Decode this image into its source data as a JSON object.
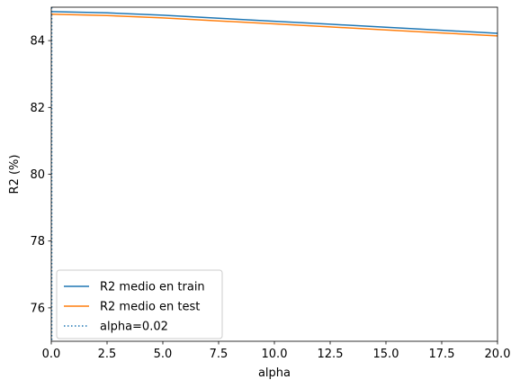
{
  "chart_data": {
    "type": "line",
    "title": "",
    "xlabel": "alpha",
    "ylabel": "R2 (%)",
    "xlim": [
      0,
      20
    ],
    "ylim": [
      75,
      85
    ],
    "xticks": [
      0,
      2.5,
      5,
      7.5,
      10,
      12.5,
      15,
      17.5,
      20
    ],
    "xtick_labels": [
      "0.0",
      "2.5",
      "5.0",
      "7.5",
      "10.0",
      "12.5",
      "15.0",
      "17.5",
      "20.0"
    ],
    "yticks": [
      76,
      78,
      80,
      82,
      84
    ],
    "ytick_labels": [
      "76",
      "78",
      "80",
      "82",
      "84"
    ],
    "grid": false,
    "legend_position": "lower-left",
    "series": [
      {
        "name": "R2 medio en train",
        "color": "#1f77b4",
        "style": "solid",
        "x": [
          0,
          2.5,
          5,
          7.5,
          10,
          12.5,
          15,
          17.5,
          20
        ],
        "y": [
          84.87,
          84.83,
          84.76,
          84.67,
          84.58,
          84.49,
          84.4,
          84.31,
          84.22
        ]
      },
      {
        "name": "R2 medio en test",
        "color": "#ff7f0e",
        "style": "solid",
        "x": [
          0,
          2.5,
          5,
          7.5,
          10,
          12.5,
          15,
          17.5,
          20
        ],
        "y": [
          84.79,
          84.75,
          84.68,
          84.59,
          84.5,
          84.41,
          84.32,
          84.23,
          84.14
        ]
      },
      {
        "name": "alpha=0.02",
        "color": "#1f77b4",
        "style": "dotted",
        "vline_x": 0.02
      }
    ]
  }
}
